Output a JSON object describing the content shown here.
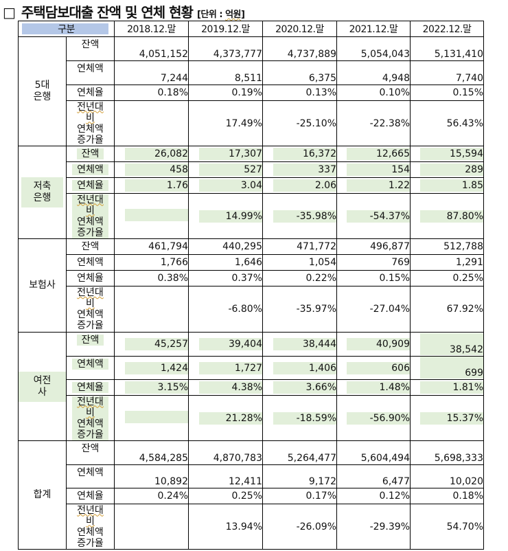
{
  "title": {
    "checkbox": "□",
    "main": "주택담보대출 잔액 및 연체 현황",
    "unit_open": "[단위 : ",
    "unit_word": "억원",
    "unit_close": "]"
  },
  "table": {
    "header": {
      "gubun": "구분",
      "years": [
        "2018.12.말",
        "2019.12.말",
        "2020.12.말",
        "2021.12.말",
        "2022.12.말"
      ]
    },
    "row_labels": {
      "balance": "잔액",
      "overdue_amount": "연체액",
      "overdue_rate": "연체율",
      "yoy_line1": "전년대",
      "yoy_line2": "비",
      "yoy_line3": "연체액",
      "yoy_line4": "증가율"
    },
    "groups": [
      {
        "name_line1": "5대",
        "name_line2": "은행",
        "balance": [
          "4,051,152",
          "4,373,777",
          "4,737,889",
          "5,054,043",
          "5,131,410"
        ],
        "overdue_amount": [
          "7,244",
          "8,511",
          "6,375",
          "4,948",
          "7,740"
        ],
        "overdue_rate": [
          "0.18%",
          "0.19%",
          "0.13%",
          "0.10%",
          "0.15%"
        ],
        "yoy": [
          "",
          "17.49%",
          "-25.10%",
          "-22.38%",
          "56.43%"
        ]
      },
      {
        "name_line1": "저축",
        "name_line2": "은행",
        "balance": [
          "26,082",
          "17,307",
          "16,372",
          "12,665",
          "15,594"
        ],
        "overdue_amount": [
          "458",
          "527",
          "337",
          "154",
          "289"
        ],
        "overdue_rate": [
          "1.76",
          "3.04",
          "2.06",
          "1.22",
          "1.85"
        ],
        "yoy": [
          "",
          "14.99%",
          "-35.98%",
          "-54.37%",
          "87.80%"
        ]
      },
      {
        "name_line1": "보험사",
        "balance": [
          "461,794",
          "440,295",
          "471,772",
          "496,877",
          "512,788"
        ],
        "overdue_amount": [
          "1,766",
          "1,646",
          "1,054",
          "769",
          "1,291"
        ],
        "overdue_rate": [
          "0.38%",
          "0.37%",
          "0.22%",
          "0.15%",
          "0.25%"
        ],
        "yoy": [
          "",
          "-6.80%",
          "-35.97%",
          "-27.04%",
          "67.92%"
        ]
      },
      {
        "name_line1": "여전사",
        "balance": [
          "45,257",
          "39,404",
          "38,444",
          "40,909",
          "38,542"
        ],
        "overdue_amount": [
          "1,424",
          "1,727",
          "1,406",
          "606",
          "699"
        ],
        "overdue_rate": [
          "3.15%",
          "4.38%",
          "3.66%",
          "1.48%",
          "1.81%"
        ],
        "yoy": [
          "",
          "21.28%",
          "-18.59%",
          "-56.90%",
          "15.37%"
        ]
      },
      {
        "name_line1": "합계",
        "balance": [
          "4,584,285",
          "4,870,783",
          "5,264,477",
          "5,604,494",
          "5,698,333"
        ],
        "overdue_amount": [
          "10,892",
          "12,411",
          "9,172",
          "6,477",
          "10,020"
        ],
        "overdue_rate": [
          "0.24%",
          "0.25%",
          "0.17%",
          "0.12%",
          "0.18%"
        ],
        "yoy": [
          "",
          "13.94%",
          "-26.09%",
          "-29.39%",
          "54.70%"
        ]
      }
    ]
  },
  "colors": {
    "header_highlight": "#b4c7e7",
    "green_highlight": "#e2efda",
    "border": "#000000"
  }
}
